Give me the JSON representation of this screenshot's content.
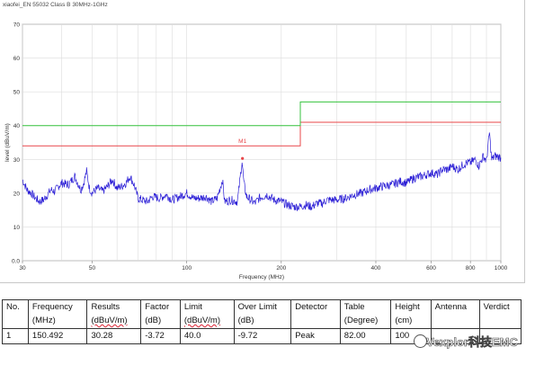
{
  "chart_data": {
    "type": "line",
    "title": "xiaofei_EN 55032 Class B 30MHz-1GHz",
    "xlabel": "Frequency (MHz)",
    "ylabel": "level (dBuV/m)",
    "xscale": "log",
    "xlim": [
      30,
      1000
    ],
    "ylim": [
      0,
      70
    ],
    "x_ticks": [
      30,
      50,
      100,
      200,
      400,
      600,
      800,
      1000
    ],
    "x_tick_labels": [
      "30",
      "50",
      "100",
      "200",
      "400",
      "600",
      "800",
      "1000"
    ],
    "y_ticks": [
      0,
      10,
      20,
      30,
      40,
      50,
      60,
      70
    ],
    "y_tick_labels": [
      "0.0",
      "10",
      "20",
      "30",
      "40",
      "50",
      "60",
      "70"
    ],
    "grid": true,
    "limit_lines": [
      {
        "color": "#e8474a",
        "points": [
          [
            30,
            34
          ],
          [
            230,
            34
          ],
          [
            230,
            41
          ],
          [
            1000,
            41
          ]
        ]
      },
      {
        "color": "#35c23f",
        "points": [
          [
            30,
            40
          ],
          [
            230,
            40
          ],
          [
            230,
            47
          ],
          [
            1000,
            47
          ]
        ]
      }
    ],
    "series": [
      {
        "color": "#2c1fd6",
        "points": [
          [
            30,
            24
          ],
          [
            31,
            21
          ],
          [
            32,
            20
          ],
          [
            33,
            18.5
          ],
          [
            34,
            17.5
          ],
          [
            35,
            18
          ],
          [
            36,
            19.5
          ],
          [
            37,
            21
          ],
          [
            38,
            20.5
          ],
          [
            39,
            22
          ],
          [
            40,
            23
          ],
          [
            42,
            22.5
          ],
          [
            44,
            25
          ],
          [
            46,
            21
          ],
          [
            47,
            23
          ],
          [
            48,
            26.5
          ],
          [
            49,
            21.5
          ],
          [
            50,
            20
          ],
          [
            52,
            21.5
          ],
          [
            54,
            20.5
          ],
          [
            56,
            22
          ],
          [
            58,
            24
          ],
          [
            60,
            21.5
          ],
          [
            62,
            22
          ],
          [
            64,
            23
          ],
          [
            66,
            25
          ],
          [
            68,
            22.5
          ],
          [
            70,
            18.5
          ],
          [
            72,
            18
          ],
          [
            75,
            17.5
          ],
          [
            78,
            19
          ],
          [
            82,
            18.5
          ],
          [
            86,
            19.5
          ],
          [
            90,
            18
          ],
          [
            95,
            19
          ],
          [
            100,
            20
          ],
          [
            105,
            18.5
          ],
          [
            110,
            18.5
          ],
          [
            115,
            19
          ],
          [
            120,
            17.5
          ],
          [
            125,
            18.5
          ],
          [
            130,
            24
          ],
          [
            132,
            17.5
          ],
          [
            138,
            18
          ],
          [
            145,
            17.5
          ],
          [
            148,
            24.5
          ],
          [
            150,
            29.5
          ],
          [
            152,
            23
          ],
          [
            155,
            19
          ],
          [
            160,
            18
          ],
          [
            165,
            17
          ],
          [
            170,
            18.5
          ],
          [
            180,
            19.5
          ],
          [
            190,
            18
          ],
          [
            200,
            17.5
          ],
          [
            210,
            16.5
          ],
          [
            220,
            16
          ],
          [
            230,
            16
          ],
          [
            240,
            16.5
          ],
          [
            250,
            16
          ],
          [
            260,
            17
          ],
          [
            270,
            17
          ],
          [
            280,
            18
          ],
          [
            300,
            18
          ],
          [
            320,
            18.5
          ],
          [
            340,
            19.5
          ],
          [
            360,
            20
          ],
          [
            380,
            21
          ],
          [
            400,
            21.5
          ],
          [
            420,
            22
          ],
          [
            450,
            22.5
          ],
          [
            480,
            23.5
          ],
          [
            500,
            23
          ],
          [
            530,
            24.5
          ],
          [
            560,
            25
          ],
          [
            600,
            26
          ],
          [
            630,
            25.5
          ],
          [
            650,
            27
          ],
          [
            680,
            27
          ],
          [
            700,
            28
          ],
          [
            730,
            27
          ],
          [
            760,
            28.5
          ],
          [
            780,
            29
          ],
          [
            800,
            29
          ],
          [
            830,
            30
          ],
          [
            850,
            28
          ],
          [
            880,
            31
          ],
          [
            900,
            29.5
          ],
          [
            920,
            38
          ],
          [
            935,
            30
          ],
          [
            960,
            31
          ],
          [
            1000,
            30.5
          ]
        ]
      }
    ],
    "markers": [
      {
        "label": "M1",
        "x": 150.492,
        "y": 30.28,
        "color": "#e8474a"
      }
    ]
  },
  "table": {
    "headers": [
      [
        "No.",
        ""
      ],
      [
        "Frequency",
        "(MHz)"
      ],
      [
        "Results",
        "(dBuV/m)"
      ],
      [
        "Factor",
        "(dB)"
      ],
      [
        "Limit",
        "(dBuV/m)"
      ],
      [
        "Over Limit",
        "(dB)"
      ],
      [
        "Detector",
        ""
      ],
      [
        "Table",
        "(Degree)"
      ],
      [
        "Height",
        "(cm)"
      ],
      [
        "Antenna",
        ""
      ],
      [
        "Verdict",
        ""
      ]
    ],
    "rows": [
      [
        "1",
        "150.492",
        "30.28",
        "-3.72",
        "40.0",
        "-9.72",
        "Peak",
        "82.00",
        "100",
        "",
        ""
      ]
    ]
  },
  "watermark": "Vexplor科技EMC"
}
